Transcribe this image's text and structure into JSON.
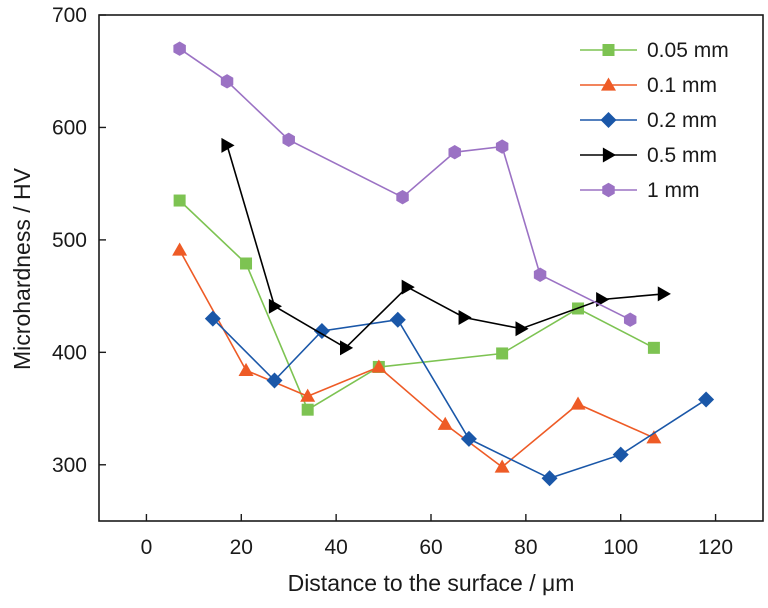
{
  "chart_data": {
    "type": "line",
    "xlabel": "Distance to the surface / μm",
    "ylabel": "Microhardness / HV",
    "xlim": [
      -10,
      130
    ],
    "ylim": [
      250,
      700
    ],
    "xticks": [
      0,
      20,
      40,
      60,
      80,
      100,
      120
    ],
    "yticks": [
      300,
      400,
      500,
      600,
      700
    ],
    "grid": false,
    "legend_position": "top-right",
    "series": [
      {
        "name": "0.05 mm",
        "color": "#7dc352",
        "marker": "square",
        "points": [
          [
            7,
            535
          ],
          [
            21,
            479
          ],
          [
            34,
            349
          ],
          [
            49,
            387
          ],
          [
            75,
            399
          ],
          [
            91,
            439
          ],
          [
            107,
            404
          ]
        ]
      },
      {
        "name": "0.1 mm",
        "color": "#ee5b26",
        "marker": "triangle-up",
        "points": [
          [
            7,
            491
          ],
          [
            21,
            384
          ],
          [
            34,
            361
          ],
          [
            49,
            387
          ],
          [
            63,
            336
          ],
          [
            75,
            298
          ],
          [
            91,
            354
          ],
          [
            107,
            324
          ]
        ]
      },
      {
        "name": "0.2 mm",
        "color": "#1a57a8",
        "marker": "diamond",
        "points": [
          [
            14,
            430
          ],
          [
            27,
            375
          ],
          [
            37,
            419
          ],
          [
            53,
            429
          ],
          [
            68,
            323
          ],
          [
            85,
            288
          ],
          [
            100,
            309
          ],
          [
            118,
            358
          ]
        ]
      },
      {
        "name": "0.5 mm",
        "color": "#000000",
        "marker": "triangle-right",
        "points": [
          [
            17,
            584
          ],
          [
            27,
            441
          ],
          [
            42,
            404
          ],
          [
            55,
            458
          ],
          [
            67,
            431
          ],
          [
            79,
            421
          ],
          [
            96,
            447
          ],
          [
            109,
            452
          ]
        ]
      },
      {
        "name": "1 mm",
        "color": "#9b72c4",
        "marker": "hexagon",
        "points": [
          [
            7,
            670
          ],
          [
            17,
            641
          ],
          [
            30,
            589
          ],
          [
            54,
            538
          ],
          [
            65,
            578
          ],
          [
            75,
            583
          ],
          [
            83,
            469
          ],
          [
            102,
            429
          ]
        ]
      }
    ]
  }
}
